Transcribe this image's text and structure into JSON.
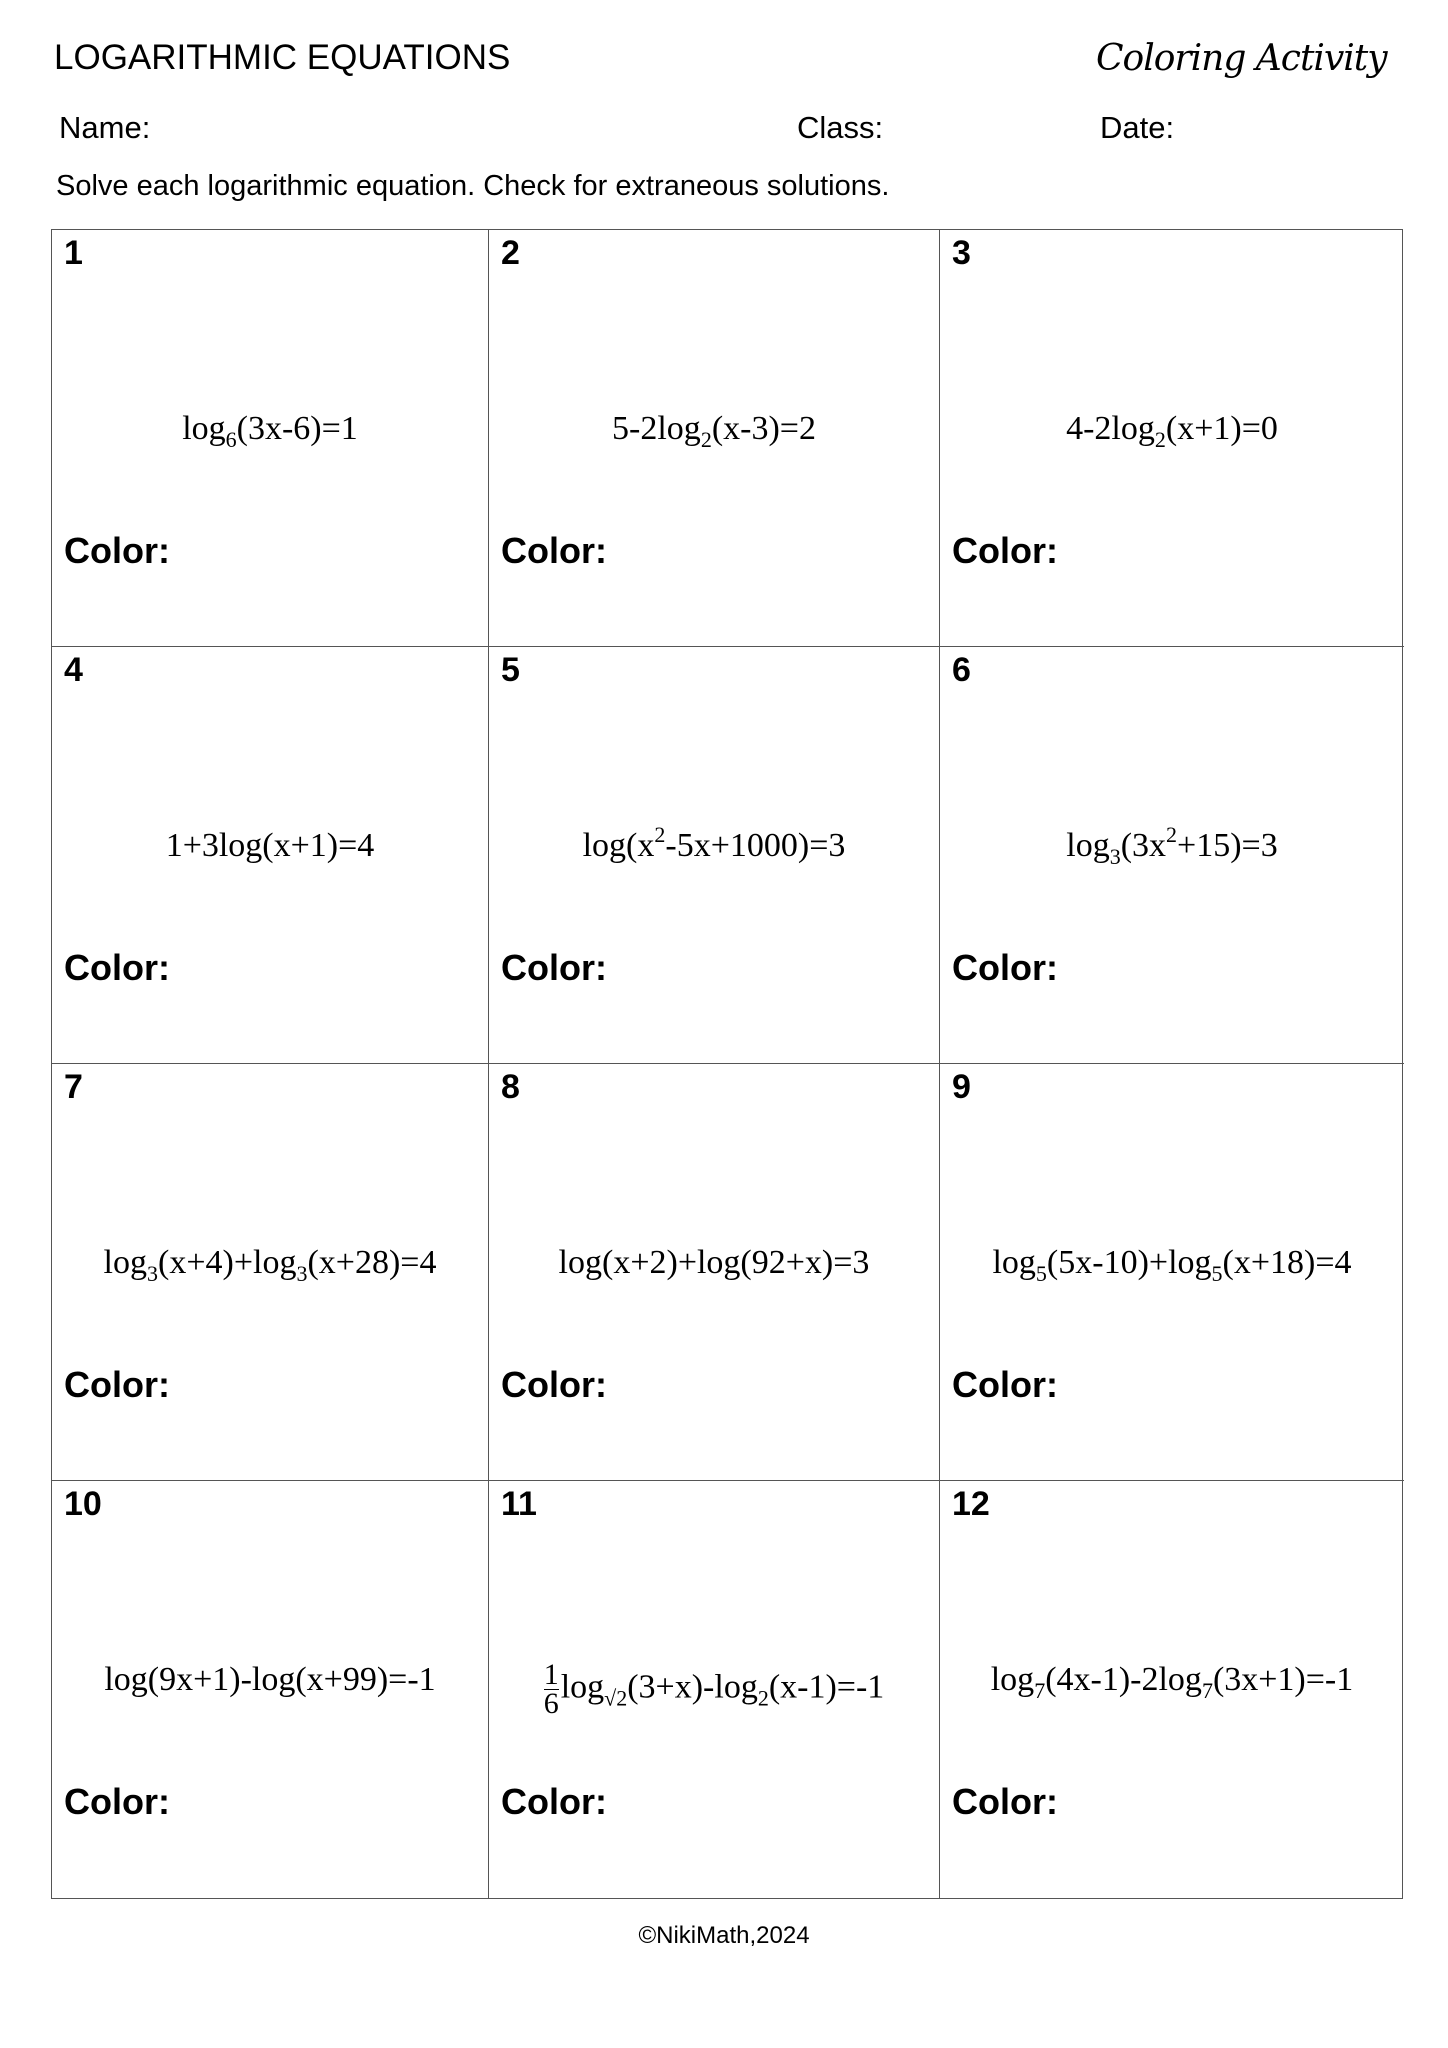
{
  "header": {
    "title": "LOGARITHMIC EQUATIONS",
    "activity": "Coloring Activity",
    "name_label": "Name:",
    "class_label": "Class:",
    "date_label": "Date:",
    "instructions": "Solve each logarithmic equation. Check for extraneous solutions."
  },
  "color_label": "Color:",
  "problems": [
    {
      "number": "1",
      "equation": [
        {
          "t": "log"
        },
        {
          "sub": "6"
        },
        {
          "t": "(3x-6)=1"
        }
      ]
    },
    {
      "number": "2",
      "equation": [
        {
          "t": "5-2log"
        },
        {
          "sub": "2"
        },
        {
          "t": "(x-3)=2"
        }
      ]
    },
    {
      "number": "3",
      "equation": [
        {
          "t": "4-2log"
        },
        {
          "sub": "2"
        },
        {
          "t": "(x+1)=0"
        }
      ]
    },
    {
      "number": "4",
      "equation": [
        {
          "t": "1+3log(x+1)=4"
        }
      ]
    },
    {
      "number": "5",
      "equation": [
        {
          "t": "log(x"
        },
        {
          "sup": "2"
        },
        {
          "t": "-5x+1000)=3"
        }
      ]
    },
    {
      "number": "6",
      "equation": [
        {
          "t": "log"
        },
        {
          "sub": "3"
        },
        {
          "t": "(3x"
        },
        {
          "sup": "2"
        },
        {
          "t": "+15)=3"
        }
      ]
    },
    {
      "number": "7",
      "equation": [
        {
          "t": "log"
        },
        {
          "sub": "3"
        },
        {
          "t": "(x+4)+log"
        },
        {
          "sub": "3"
        },
        {
          "t": "(x+28)=4"
        }
      ]
    },
    {
      "number": "8",
      "equation": [
        {
          "t": "log(x+2)+log(92+x)=3"
        }
      ]
    },
    {
      "number": "9",
      "equation": [
        {
          "t": "log"
        },
        {
          "sub": "5"
        },
        {
          "t": "(5x-10)+log"
        },
        {
          "sub": "5"
        },
        {
          "t": "(x+18)=4"
        }
      ]
    },
    {
      "number": "10",
      "equation": [
        {
          "t": "log(9x+1)-log(x+99)=-1"
        }
      ]
    },
    {
      "number": "11",
      "equation": [
        {
          "frac": [
            "1",
            "6"
          ]
        },
        {
          "t": "log"
        },
        {
          "sub": "√2"
        },
        {
          "t": "(3+x)-log"
        },
        {
          "sub": "2"
        },
        {
          "t": "(x-1)=-1"
        }
      ]
    },
    {
      "number": "12",
      "equation": [
        {
          "t": "log"
        },
        {
          "sub": "7"
        },
        {
          "t": "(4x-1)-2log"
        },
        {
          "sub": "7"
        },
        {
          "t": "(3x+1)=-1"
        }
      ]
    }
  ],
  "footer": "©NikiMath,2024"
}
